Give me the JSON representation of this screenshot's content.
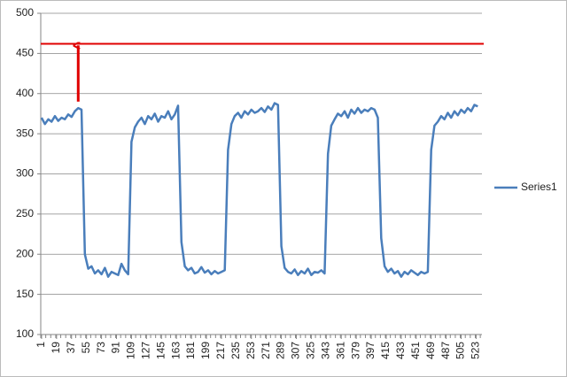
{
  "chart_data": {
    "type": "line",
    "x": [
      1,
      5,
      9,
      13,
      17,
      21,
      25,
      29,
      33,
      37,
      41,
      45,
      49,
      53,
      57,
      61,
      65,
      69,
      73,
      77,
      81,
      85,
      89,
      93,
      97,
      101,
      105,
      109,
      113,
      117,
      121,
      125,
      129,
      133,
      137,
      141,
      145,
      149,
      153,
      157,
      161,
      165,
      169,
      173,
      177,
      181,
      185,
      189,
      193,
      197,
      201,
      205,
      209,
      213,
      217,
      221,
      225,
      229,
      233,
      237,
      241,
      245,
      249,
      253,
      257,
      261,
      265,
      269,
      273,
      277,
      281,
      285,
      289,
      293,
      297,
      301,
      305,
      309,
      313,
      317,
      321,
      325,
      329,
      333,
      337,
      341,
      345,
      349,
      353,
      357,
      361,
      365,
      369,
      373,
      377,
      381,
      385,
      389,
      393,
      397,
      401,
      405,
      409,
      413,
      417,
      421,
      425,
      429,
      433,
      437,
      441,
      445,
      449,
      453,
      457,
      461,
      465,
      469,
      473,
      477,
      481,
      485,
      489,
      493,
      497,
      501,
      505,
      509,
      513,
      517,
      521,
      525
    ],
    "series": [
      {
        "name": "Series1",
        "color": "#4a7ebb",
        "values": [
          370,
          362,
          368,
          365,
          372,
          366,
          370,
          368,
          374,
          371,
          378,
          382,
          380,
          200,
          182,
          185,
          176,
          180,
          175,
          183,
          172,
          178,
          176,
          174,
          188,
          180,
          175,
          340,
          358,
          365,
          370,
          362,
          372,
          368,
          375,
          365,
          372,
          370,
          378,
          368,
          374,
          385,
          215,
          185,
          180,
          183,
          176,
          178,
          184,
          177,
          180,
          175,
          179,
          176,
          178,
          180,
          330,
          362,
          372,
          376,
          370,
          378,
          374,
          380,
          376,
          378,
          382,
          377,
          384,
          380,
          388,
          386,
          210,
          183,
          178,
          176,
          181,
          174,
          179,
          176,
          182,
          174,
          178,
          177,
          180,
          176,
          325,
          360,
          368,
          375,
          372,
          378,
          370,
          380,
          375,
          382,
          376,
          380,
          378,
          382,
          380,
          370,
          220,
          185,
          178,
          182,
          176,
          179,
          172,
          178,
          175,
          180,
          177,
          174,
          178,
          176,
          178,
          330,
          360,
          365,
          372,
          368,
          376,
          370,
          378,
          373,
          380,
          376,
          382,
          378,
          386,
          384
        ]
      }
    ],
    "xlim": [
      0,
      530
    ],
    "xticks": [
      1,
      19,
      37,
      55,
      73,
      91,
      109,
      127,
      145,
      163,
      181,
      199,
      217,
      235,
      253,
      271,
      289,
      307,
      325,
      343,
      361,
      379,
      397,
      415,
      433,
      451,
      469,
      487,
      505,
      523
    ],
    "ylim": [
      100,
      500
    ],
    "yticks": [
      100,
      150,
      200,
      250,
      300,
      350,
      400,
      450,
      500
    ],
    "grid": true,
    "legend": "right",
    "reference_line": {
      "value": 462,
      "color": "#e00000"
    },
    "arrow": {
      "x": 45,
      "y_from": 390,
      "y_to": 460,
      "color": "#e00000"
    }
  }
}
